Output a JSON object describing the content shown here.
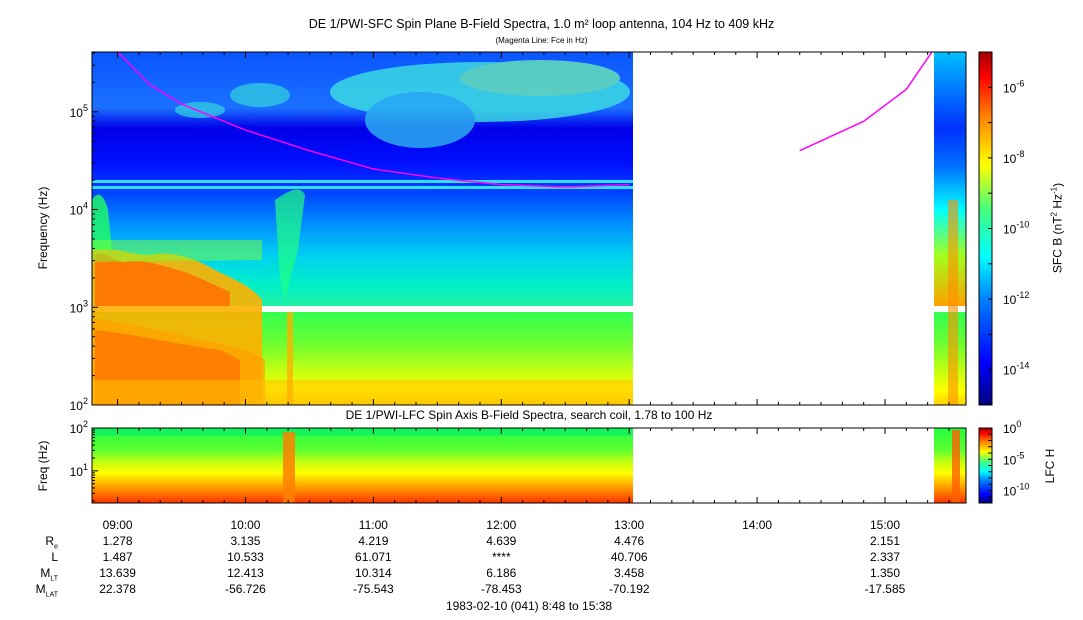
{
  "title": "DE 1/PWI-SFC  Spin Plane B-Field Spectra, 1.0 m² loop antenna, 104 Hz to 409 kHz",
  "subtitle": "(Magenta Line: Fce in Hz)",
  "colors": {
    "magenta_line": "#ff00ff",
    "colormap": [
      "#00007f",
      "#0000ff",
      "#0080ff",
      "#00ffff",
      "#80ff80",
      "#ffff00",
      "#ff8000",
      "#ff0000",
      "#7f0000"
    ]
  },
  "panels": {
    "sfc": {
      "ylabel": "Frequency (Hz)",
      "yticks": [
        {
          "base": "10",
          "exp": "2"
        },
        {
          "base": "10",
          "exp": "3"
        },
        {
          "base": "10",
          "exp": "4"
        },
        {
          "base": "10",
          "exp": "5"
        }
      ],
      "colorbar_label": "SFC B (nT² Hz⁻¹)",
      "colorbar_label_parts": {
        "pre": "SFC B (nT",
        "sup1": "2",
        "mid": " Hz",
        "sup2": "-1",
        "post": ")"
      },
      "colorbar_ticks": [
        {
          "base": "10",
          "exp": "-6"
        },
        {
          "base": "10",
          "exp": "-8"
        },
        {
          "base": "10",
          "exp": "-10"
        },
        {
          "base": "10",
          "exp": "-12"
        },
        {
          "base": "10",
          "exp": "-14"
        }
      ]
    },
    "lfc": {
      "title": "DE 1/PWI-LFC  Spin Axis B-Field Spectra, search coil, 1.78 to 100 Hz",
      "ylabel": "Freq (Hz)",
      "yticks": [
        {
          "base": "10",
          "exp": "2"
        },
        {
          "base": "10",
          "exp": "1"
        }
      ],
      "colorbar_label": "LFC H",
      "colorbar_ticks": [
        {
          "base": "10",
          "exp": "0"
        },
        {
          "base": "10",
          "exp": "-5"
        },
        {
          "base": "10",
          "exp": "-10"
        }
      ]
    }
  },
  "time_axis": {
    "ticks": [
      "09:00",
      "10:00",
      "11:00",
      "12:00",
      "13:00",
      "14:00",
      "15:00"
    ],
    "footer": "1983-02-10 (041) 8:48 to 15:38"
  },
  "ephemeris": {
    "rows": [
      {
        "label": "R",
        "sub": "e",
        "values": [
          "1.278",
          "3.135",
          "4.219",
          "4.639",
          "4.476",
          "",
          "2.151"
        ]
      },
      {
        "label": "L",
        "sub": "",
        "values": [
          "1.487",
          "10.533",
          "61.071",
          "****",
          "40.706",
          "",
          "2.337"
        ]
      },
      {
        "label": "M",
        "sub": "LT",
        "values": [
          "13.639",
          "12.413",
          "10.314",
          "6.186",
          "3.458",
          "",
          "1.350"
        ]
      },
      {
        "label": "M",
        "sub": "LAT",
        "values": [
          "22.378",
          "-56.726",
          "-75.543",
          "-78.453",
          "-70.192",
          "",
          "-17.585"
        ]
      }
    ]
  },
  "chart_data": {
    "type": "heatmap",
    "title": "DE 1/PWI-SFC  Spin Plane B-Field Spectra, 1.0 m² loop antenna, 104 Hz to 409 kHz",
    "subtitle": "(Magenta Line: Fce in Hz)",
    "xlabel": "",
    "x_range": [
      "08:48",
      "15:38"
    ],
    "data_gap": [
      "13:03",
      "15:22"
    ],
    "sfc_panel": {
      "ylabel": "Frequency (Hz)",
      "y_scale": "log",
      "ylim": [
        100,
        409000
      ],
      "colorbar": {
        "label": "SFC B (nT² Hz⁻¹)",
        "scale": "log",
        "range": [
          1e-15,
          1e-05
        ]
      },
      "fce_line": [
        {
          "t": "09:00",
          "f": 409000
        },
        {
          "t": "09:15",
          "f": 190000
        },
        {
          "t": "09:30",
          "f": 120000
        },
        {
          "t": "10:00",
          "f": 65000
        },
        {
          "t": "10:30",
          "f": 40000
        },
        {
          "t": "11:00",
          "f": 26000
        },
        {
          "t": "11:30",
          "f": 21000
        },
        {
          "t": "12:00",
          "f": 18000
        },
        {
          "t": "12:30",
          "f": 17000
        },
        {
          "t": "13:00",
          "f": 18000
        },
        {
          "t": "14:20",
          "f": 40000
        },
        {
          "t": "14:50",
          "f": 80000
        },
        {
          "t": "15:10",
          "f": 170000
        },
        {
          "t": "15:22",
          "f": 409000
        }
      ]
    },
    "lfc_panel": {
      "title": "DE 1/PWI-LFC  Spin Axis B-Field Spectra, search coil, 1.78 to 100 Hz",
      "ylabel": "Freq (Hz)",
      "y_scale": "log",
      "ylim": [
        1.78,
        100
      ],
      "colorbar": {
        "label": "LFC H",
        "scale": "log",
        "range": [
          1e-12,
          1
        ]
      }
    }
  }
}
